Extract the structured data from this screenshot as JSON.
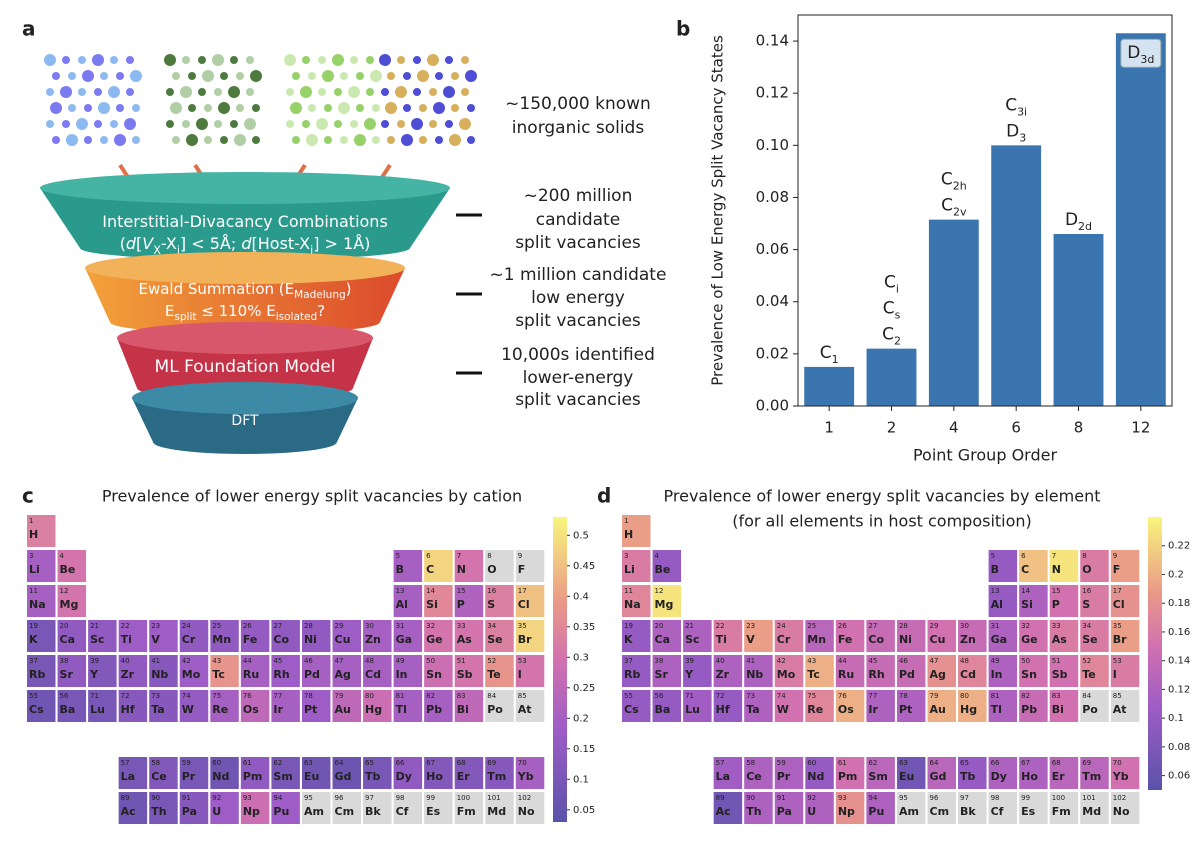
{
  "panel_labels": [
    "a",
    "b",
    "c",
    "d"
  ],
  "funnel": {
    "stages": [
      {
        "lines": [
          [
            {
              "t": "Interstitial-Divacancy Combinations"
            }
          ],
          [
            {
              "t": "("
            },
            {
              "t": "d",
              "s": "i"
            },
            {
              "t": "["
            },
            {
              "t": "V",
              "s": "i"
            },
            {
              "t": "X",
              "s": "sub"
            },
            {
              "t": "-X"
            },
            {
              "t": "i",
              "s": "sub"
            },
            {
              "t": "] < 5Å; "
            },
            {
              "t": "d",
              "s": "i"
            },
            {
              "t": "[Host-X"
            },
            {
              "t": "i",
              "s": "sub"
            },
            {
              "t": "] > 1Å)"
            }
          ]
        ]
      },
      {
        "lines": [
          [
            {
              "t": "Ewald Summation (E"
            },
            {
              "t": "Madelung",
              "s": "sub"
            },
            {
              "t": ")"
            }
          ],
          [
            {
              "t": "E"
            },
            {
              "t": "split",
              "s": "sub"
            },
            {
              "t": " ≤ 110% E"
            },
            {
              "t": "isolated",
              "s": "sub"
            },
            {
              "t": "?"
            }
          ]
        ]
      },
      {
        "lines": [
          [
            {
              "t": "ML Foundation Model"
            }
          ]
        ]
      },
      {
        "lines": [
          [
            {
              "t": "DFT"
            }
          ]
        ]
      }
    ],
    "notes": [
      [
        "~150,000 known",
        "inorganic solids"
      ],
      [
        "~200 million",
        "candidate",
        "split vacancies"
      ],
      [
        "~1 million candidate",
        "low energy",
        "split vacancies"
      ],
      [
        "10,000s identified",
        "lower-energy",
        "split vacancies"
      ]
    ]
  },
  "chart_data": {
    "type": "bar",
    "xlabel": "Point Group Order",
    "ylabel": "Prevalence of Low Energy Split Vacancy States",
    "categories": [
      "1",
      "2",
      "4",
      "6",
      "8",
      "12"
    ],
    "values": [
      0.015,
      0.022,
      0.0715,
      0.1,
      0.066,
      0.143
    ],
    "color": "#3a75b0",
    "ylim": [
      0,
      0.15
    ],
    "yticks": [
      {
        "value": 0,
        "label": "0.00"
      },
      {
        "value": 0.02,
        "label": "0.02"
      },
      {
        "value": 0.04,
        "label": "0.04"
      },
      {
        "value": 0.06,
        "label": "0.06"
      },
      {
        "value": 0.08,
        "label": "0.08"
      },
      {
        "value": 0.1,
        "label": "0.10"
      },
      {
        "value": 0.12,
        "label": "0.12"
      },
      {
        "value": 0.14,
        "label": "0.14"
      }
    ],
    "annotations": [
      {
        "lines": [
          {
            "t": "C",
            "sub": "1"
          }
        ]
      },
      {
        "lines": [
          {
            "t": "C",
            "sub": "i"
          },
          {
            "t": "C",
            "sub": "s"
          },
          {
            "t": "C",
            "sub": "2"
          }
        ]
      },
      {
        "lines": [
          {
            "t": "C",
            "sub": "2h"
          },
          {
            "t": "C",
            "sub": "2v"
          }
        ]
      },
      {
        "lines": [
          {
            "t": "C",
            "sub": "3i"
          },
          {
            "t": "D",
            "sub": "3"
          }
        ]
      },
      {
        "lines": [
          {
            "t": "D",
            "sub": "2d"
          }
        ]
      },
      {
        "lines": [
          {
            "t": "D",
            "sub": "3d"
          }
        ],
        "boxed": true
      }
    ]
  },
  "elements": {
    "numbers": [
      1,
      3,
      4,
      5,
      6,
      7,
      8,
      9,
      11,
      12,
      13,
      14,
      15,
      16,
      17,
      19,
      20,
      21,
      22,
      23,
      24,
      25,
      26,
      27,
      28,
      29,
      30,
      31,
      32,
      33,
      34,
      35,
      37,
      38,
      39,
      40,
      41,
      42,
      43,
      44,
      45,
      46,
      47,
      48,
      49,
      50,
      51,
      52,
      53,
      55,
      56,
      71,
      72,
      73,
      74,
      75,
      76,
      77,
      78,
      79,
      80,
      81,
      82,
      83,
      84,
      85,
      57,
      58,
      59,
      60,
      61,
      62,
      63,
      64,
      65,
      66,
      67,
      68,
      69,
      70,
      89,
      90,
      91,
      92,
      93,
      94,
      95,
      96,
      97,
      98,
      99,
      100,
      101,
      102
    ],
    "symbols": [
      "H",
      "Li",
      "Be",
      "B",
      "C",
      "N",
      "O",
      "F",
      "Na",
      "Mg",
      "Al",
      "Si",
      "P",
      "S",
      "Cl",
      "K",
      "Ca",
      "Sc",
      "Ti",
      "V",
      "Cr",
      "Mn",
      "Fe",
      "Co",
      "Ni",
      "Cu",
      "Zn",
      "Ga",
      "Ge",
      "As",
      "Se",
      "Br",
      "Rb",
      "Sr",
      "Y",
      "Zr",
      "Nb",
      "Mo",
      "Tc",
      "Ru",
      "Rh",
      "Pd",
      "Ag",
      "Cd",
      "In",
      "Sn",
      "Sb",
      "Te",
      "I",
      "Cs",
      "Ba",
      "Lu",
      "Hf",
      "Ta",
      "W",
      "Re",
      "Os",
      "Ir",
      "Pt",
      "Au",
      "Hg",
      "Tl",
      "Pb",
      "Bi",
      "Po",
      "At",
      "La",
      "Ce",
      "Pr",
      "Nd",
      "Pm",
      "Sm",
      "Eu",
      "Gd",
      "Tb",
      "Dy",
      "Ho",
      "Er",
      "Tm",
      "Yb",
      "Ac",
      "Th",
      "Pa",
      "U",
      "Np",
      "Pu",
      "Am",
      "Cm",
      "Bk",
      "Cf",
      "Es",
      "Fm",
      "Md",
      "No"
    ]
  },
  "periodic_tables": [
    {
      "title": [
        "Prevalence of lower energy split vacancies by cation"
      ],
      "clim": [
        0.03,
        0.53
      ],
      "cticks": [
        0.05,
        0.1,
        0.15,
        0.2,
        0.25,
        0.3,
        0.35,
        0.4,
        0.45,
        0.5
      ],
      "values": [
        0.33,
        0.2,
        0.3,
        0.2,
        0.48,
        0.3,
        null,
        null,
        0.2,
        0.3,
        0.2,
        0.35,
        0.22,
        0.33,
        0.45,
        0.1,
        0.15,
        0.15,
        0.18,
        0.18,
        0.15,
        0.15,
        0.16,
        0.15,
        0.15,
        0.18,
        0.2,
        0.2,
        0.3,
        0.3,
        0.33,
        0.48,
        0.1,
        0.15,
        0.12,
        0.15,
        0.13,
        0.18,
        0.38,
        0.2,
        0.18,
        0.2,
        0.2,
        0.2,
        0.2,
        0.28,
        0.3,
        0.38,
        0.3,
        0.08,
        0.1,
        0.1,
        0.13,
        0.13,
        0.16,
        0.2,
        0.25,
        0.2,
        0.18,
        0.25,
        0.28,
        0.2,
        0.2,
        0.25,
        null,
        null,
        0.1,
        0.12,
        0.1,
        0.08,
        0.15,
        0.1,
        0.08,
        0.07,
        0.1,
        0.15,
        0.12,
        0.12,
        0.13,
        0.2,
        0.08,
        0.1,
        0.13,
        0.18,
        0.28,
        0.18,
        null,
        null,
        null,
        null,
        null,
        null,
        null,
        null
      ]
    },
    {
      "title": [
        "Prevalence of lower energy split vacancies by element",
        "(for all elements in host composition)"
      ],
      "clim": [
        0.05,
        0.24
      ],
      "cticks": [
        0.06,
        0.08,
        0.1,
        0.12,
        0.14,
        0.16,
        0.18,
        0.2,
        0.22
      ],
      "values": [
        0.19,
        0.16,
        0.1,
        0.1,
        0.21,
        0.23,
        0.16,
        0.19,
        0.17,
        0.23,
        0.1,
        0.12,
        0.15,
        0.16,
        0.18,
        0.1,
        0.12,
        0.12,
        0.16,
        0.19,
        0.16,
        0.13,
        0.15,
        0.14,
        0.14,
        0.15,
        0.14,
        0.12,
        0.15,
        0.16,
        0.16,
        0.19,
        0.1,
        0.12,
        0.1,
        0.12,
        0.12,
        0.16,
        0.2,
        0.14,
        0.14,
        0.14,
        0.18,
        0.17,
        0.12,
        0.15,
        0.15,
        0.17,
        0.16,
        0.1,
        0.1,
        0.11,
        0.1,
        0.12,
        0.15,
        0.17,
        0.2,
        0.12,
        0.12,
        0.2,
        0.2,
        0.12,
        0.14,
        0.15,
        null,
        null,
        0.11,
        0.12,
        0.12,
        0.1,
        0.15,
        0.13,
        0.07,
        0.13,
        0.1,
        0.12,
        0.12,
        0.13,
        0.13,
        0.15,
        0.07,
        0.12,
        0.12,
        0.12,
        0.18,
        0.12,
        null,
        null,
        null,
        null,
        null,
        null,
        null,
        null
      ]
    }
  ]
}
